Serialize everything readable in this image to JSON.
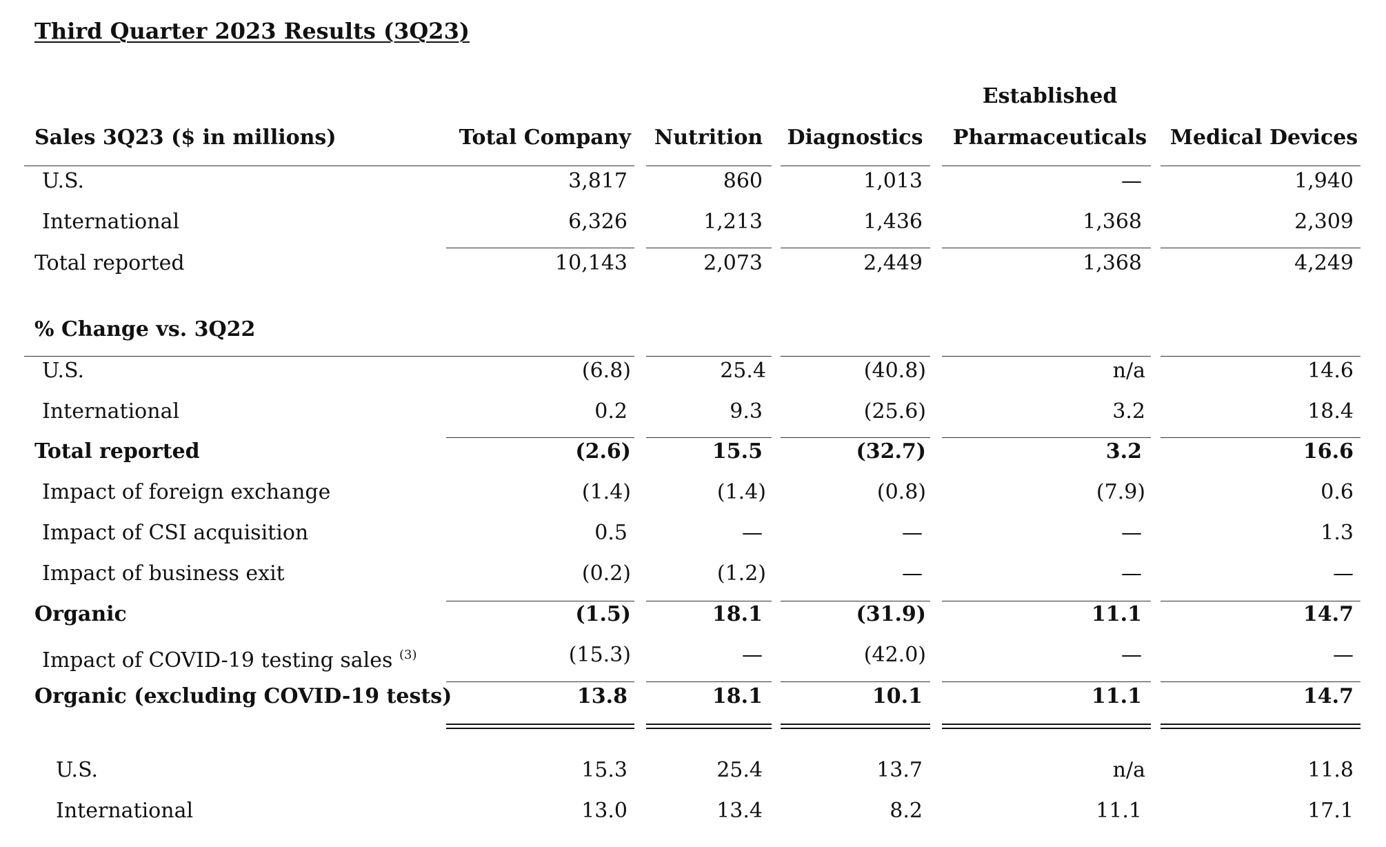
{
  "title": "Third Quarter 2023 Results (3Q23)",
  "columns": {
    "label": "Sales 3Q23 ($ in millions)",
    "total_company": "Total Company",
    "nutrition": "Nutrition",
    "diagnostics": "Diagnostics",
    "established_top": "Established",
    "established_bottom": "Pharmaceuticals",
    "medical_devices": "Medical Devices"
  },
  "sales": [
    {
      "label": "U.S.",
      "values": [
        "3,817",
        "860",
        "1,013",
        "—",
        "1,940"
      ]
    },
    {
      "label": "International",
      "values": [
        "6,326",
        "1,213",
        "1,436",
        "1,368",
        "2,309"
      ]
    },
    {
      "label": "Total reported",
      "values": [
        "10,143",
        "2,073",
        "2,449",
        "1,368",
        "4,249"
      ]
    }
  ],
  "change_section_label": "% Change vs. 3Q22",
  "change": [
    {
      "label": "U.S.",
      "values": [
        "(6.8)",
        "25.4",
        "(40.8)",
        "n/a",
        "14.6"
      ]
    },
    {
      "label": "International",
      "values": [
        "0.2",
        "9.3",
        "(25.6)",
        "3.2",
        "18.4"
      ]
    },
    {
      "label": "Total reported",
      "values": [
        "(2.6)",
        "15.5",
        "(32.7)",
        "3.2",
        "16.6"
      ]
    },
    {
      "label": "Impact of foreign exchange",
      "values": [
        "(1.4)",
        "(1.4)",
        "(0.8)",
        "(7.9)",
        "0.6"
      ]
    },
    {
      "label": "Impact of CSI acquisition",
      "values": [
        "0.5",
        "—",
        "—",
        "—",
        "1.3"
      ]
    },
    {
      "label": "Impact of business exit",
      "values": [
        "(0.2)",
        "(1.2)",
        "—",
        "—",
        "—"
      ]
    },
    {
      "label": "Organic",
      "values": [
        "(1.5)",
        "18.1",
        "(31.9)",
        "11.1",
        "14.7"
      ]
    },
    {
      "label": "Impact of COVID-19 testing sales",
      "footnote": "(3)",
      "values": [
        "(15.3)",
        "—",
        "(42.0)",
        "—",
        "—"
      ]
    },
    {
      "label": "Organic (excluding COVID-19 tests)",
      "values": [
        "13.8",
        "18.1",
        "10.1",
        "11.1",
        "14.7"
      ]
    }
  ],
  "organic_split": [
    {
      "label": "U.S.",
      "values": [
        "15.3",
        "25.4",
        "13.7",
        "n/a",
        "11.8"
      ]
    },
    {
      "label": "International",
      "values": [
        "13.0",
        "13.4",
        "8.2",
        "11.1",
        "17.1"
      ]
    }
  ]
}
